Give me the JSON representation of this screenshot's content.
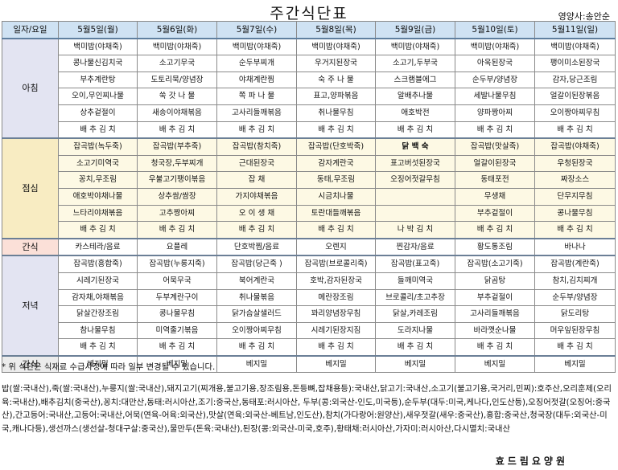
{
  "title": "주간식단표",
  "nutritionist": "영양사:송안순",
  "corner_header": "일자/요일",
  "days": [
    "5월5일(월)",
    "5월6일(화)",
    "5월7일(수)",
    "5월8일(목)",
    "5월9일(금)",
    "5월10일(토)",
    "5월11일(일)"
  ],
  "meals": [
    {
      "name": "아침",
      "cls": "morning",
      "rows": [
        [
          "백미밥(야채죽)",
          "백미밥(야채죽)",
          "백미밥(야채죽)",
          "백미밥(야채죽)",
          "백미밥(야채죽)",
          "백미밥(야채죽)",
          "백미밥(야채죽)"
        ],
        [
          "콩나물신김치국",
          "소고기무국",
          "순두부찌개",
          "우거지된장국",
          "소고기,두부국",
          "아욱된장국",
          "팽이미소된장국"
        ],
        [
          "부추계란탕",
          "도토리묵/양념장",
          "야채계란찜",
          "숙 주 나 물",
          "스크램블에그",
          "순두부/양념장",
          "감자,당근조림"
        ],
        [
          "오이,무인찌나물",
          "쑥 갓 나 물",
          "쪽 파 나 물",
          "표고,양파볶음",
          "알배추나물",
          "세발나물무침",
          "얼갈이된장볶음"
        ],
        [
          "상추겉절이",
          "새송이야채볶음",
          "고사리들깨볶음",
          "취나물무침",
          "애호박전",
          "양파짱아찌",
          "오이짱아찌무침"
        ],
        [
          "배 추 김 치",
          "배 추 김 치",
          "배 추 김 치",
          "배 추 김 치",
          "배 추 김 치",
          "배 추 김 치",
          "배 추 김 치"
        ]
      ]
    },
    {
      "name": "점심",
      "cls": "lunch",
      "rows": [
        [
          "잡곡밥(녹두죽)",
          "잡곡밥(부추죽)",
          "잡곡밥(참치죽)",
          "잡곡밥(단호박죽)",
          "닭 백 숙",
          "잡곡밥(맛살죽)",
          "잡곡밥(야채죽)"
        ],
        [
          "소고기미역국",
          "청국장,두부찌개",
          "근대된장국",
          "감자계란국",
          "표고버섯된장국",
          "얼갈이된장국",
          "우청된장국"
        ],
        [
          "꽁치,무조림",
          "우불고기팽이볶음",
          "잡          채",
          "동태,무조림",
          "오징어젓갈무침",
          "동태포전",
          "짜장소스"
        ],
        [
          "애호박야채나물",
          "상추쌈/쌈장",
          "가지야채볶음",
          "시금치나물",
          "",
          "무생채",
          "단무지무침"
        ],
        [
          "느타리야채볶음",
          "고추짱아찌",
          "오 이 생 채",
          "토란대들깨볶음",
          "",
          "부추겉절이",
          "콩나물무침"
        ],
        [
          "배 추 김 치",
          "배 추 김 치",
          "배 추 김 치",
          "배 추 김 치",
          "나 박 김 치",
          "배 추 김 치",
          "배 추 김 치"
        ]
      ]
    },
    {
      "name": "간식",
      "cls": "snack",
      "rows": [
        [
          "카스테라/음료",
          "요플레",
          "단호박찜/음료",
          "오렌지",
          "찐감자/음료",
          "황도통조림",
          "바나나"
        ]
      ]
    },
    {
      "name": "저녁",
      "cls": "dinner",
      "rows": [
        [
          "잡곡밥(흥합죽)",
          "잡곡밥(누룽지죽)",
          "잡곡밥(당근죽 )",
          "잡곡밥(브로콜리죽)",
          "잡곡밥(표고죽)",
          "잡곡밥(소고기죽)",
          "잡곡밥(계란죽)"
        ],
        [
          "시레기된장국",
          "어묵무국",
          "북어계란국",
          "호박,감자된장국",
          "들깨미역국",
          "닭곰탕",
          "참치,김치찌개"
        ],
        [
          "감자채,야채볶음",
          "두부계란구이",
          "취나물볶음",
          "메란장조림",
          "브로콜리/초고추장",
          "부추겉절이",
          "순두부/양념장"
        ],
        [
          "닭살간장조림",
          "콩나물무침",
          "닭가슴살샐러드",
          "꽈리양념장무침",
          "닭살,카레조림",
          "고사리들깨볶음",
          "닭도리탕"
        ],
        [
          "참나물무침",
          "미역줄기볶음",
          "오이짱아찌무침",
          "시레기된장지짐",
          "도라지나물",
          "바라깻순나물",
          "머우잎된장무침"
        ],
        [
          "배 추 김 치",
          "배 추 김 치",
          "배 추 김 치",
          "배 추 김 치",
          "배 추 김 치",
          "배 추 김 치",
          "배 추 김 치"
        ]
      ]
    },
    {
      "name": "간식",
      "cls": "night",
      "rows": [
        [
          "베지밀",
          "베지밀",
          "베지밀",
          "베지밀",
          "베지밀",
          "베지밀",
          "베지밀"
        ]
      ]
    }
  ],
  "note_change": "* 위 식단은 식재료 수급사정에 따라 일부 변경될 수 있습니다.",
  "origin_text": "밥(쌀:국내산),죽(쌀:국내산),누룽지(쌀:국내산),돼지고기(찌개용,불고기용,장조림용,돈등뼈,잡채용등):국내산,닭고기:국내산,소고기(불고기용,국거리,민찌):호주산,오리훈제(오리육:국내산),배추김치(중국산),꽁치:대만산,동태:러시아산,조기:중국산,동태포:러시아산, 두부(콩:외국산-인도,미국등),순두부(대두:미국,케나다,인도산등),오징어젓갈(오징어:중국산),간고등어:국내산,고등어:국내산,어묵(연육-어육:외국산),맛살(연육:외국산-베트남,인도산),참치(가다랑어:원양산),새우젓갈(새우:중국산),홍합:중국산,청국장(대두:외국산-미국,캐나다등),생선까스(생선살-청대구살:중국산),물만두(돈육:국내산),된장(콩:외국산-미국,호주),황태채:러시아산,가자미:러시아산,다시멸치:국내산",
  "footer": "효드림요양원"
}
